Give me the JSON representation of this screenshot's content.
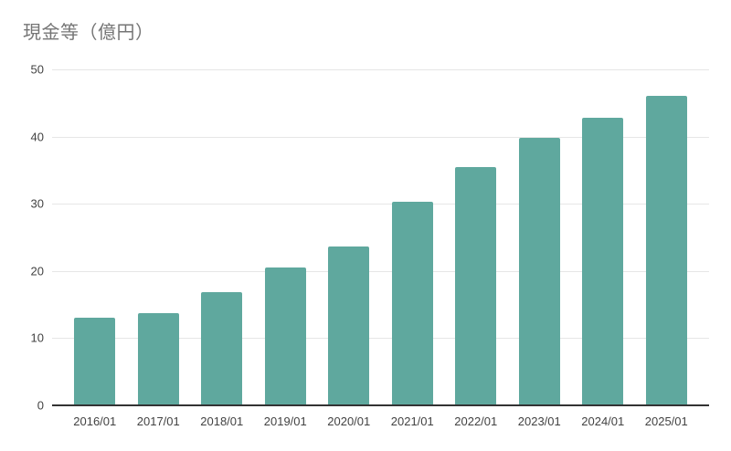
{
  "title": "現金等（億円）",
  "colors": {
    "bar": "#5fa89e",
    "grid": "#e6e6e6",
    "axis": "#333333",
    "tick_label": "#424242",
    "title": "#757575",
    "background": "#ffffff"
  },
  "chart_data": {
    "type": "bar",
    "title": "現金等（億円）",
    "categories": [
      "2016/01",
      "2017/01",
      "2018/01",
      "2019/01",
      "2020/01",
      "2021/01",
      "2022/01",
      "2023/01",
      "2024/01",
      "2025/01"
    ],
    "values": [
      13.0,
      13.7,
      16.8,
      20.5,
      23.7,
      30.3,
      35.4,
      39.8,
      42.8,
      46.0
    ],
    "xlabel": "",
    "ylabel": "",
    "ylim": [
      0,
      50
    ],
    "yticks": [
      0,
      10,
      20,
      30,
      40,
      50
    ],
    "grid": true,
    "legend": "none"
  }
}
